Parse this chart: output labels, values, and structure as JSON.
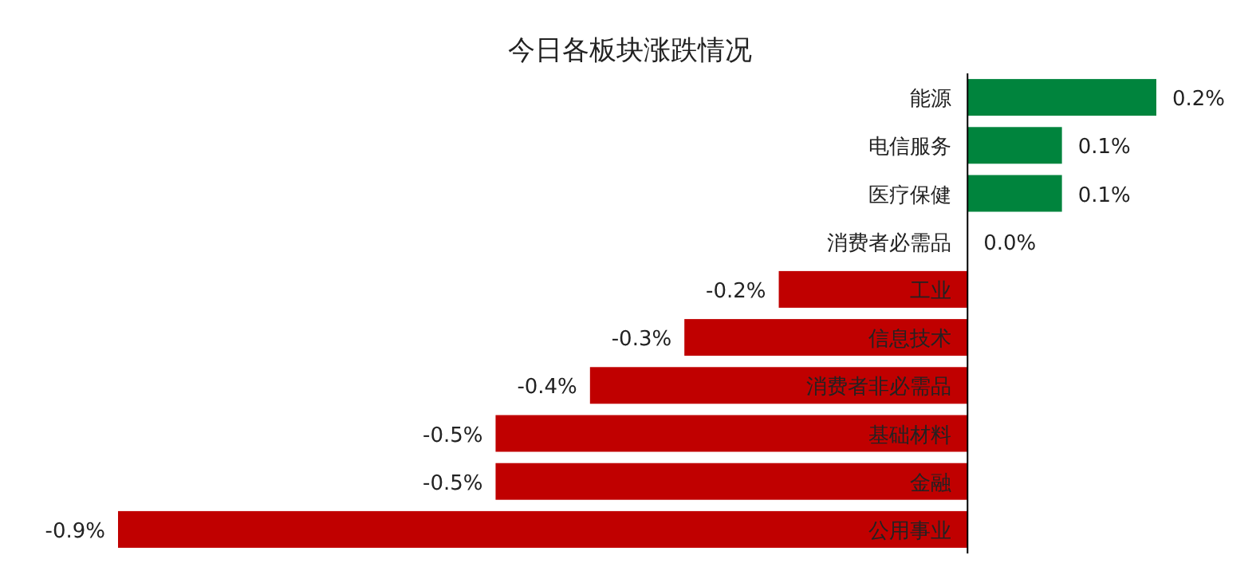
{
  "chart_data": {
    "type": "bar",
    "orientation": "horizontal",
    "title": "今日各板块涨跌情况",
    "categories": [
      "能源",
      "电信服务",
      "医疗保健",
      "消费者必需品",
      "工业",
      "信息技术",
      "消费者非必需品",
      "基础材料",
      "金融",
      "公用事业"
    ],
    "values": [
      0.2,
      0.1,
      0.1,
      0.0,
      -0.2,
      -0.3,
      -0.4,
      -0.5,
      -0.5,
      -0.9
    ],
    "value_labels": [
      "0.2%",
      "0.1%",
      "0.1%",
      "0.0%",
      "-0.2%",
      "-0.3%",
      "-0.4%",
      "-0.5%",
      "-0.5%",
      "-0.9%"
    ],
    "colors": [
      "#00843d",
      "#00843d",
      "#00843d",
      "#00843d",
      "#c00000",
      "#c00000",
      "#c00000",
      "#c00000",
      "#c00000",
      "#c00000"
    ]
  }
}
